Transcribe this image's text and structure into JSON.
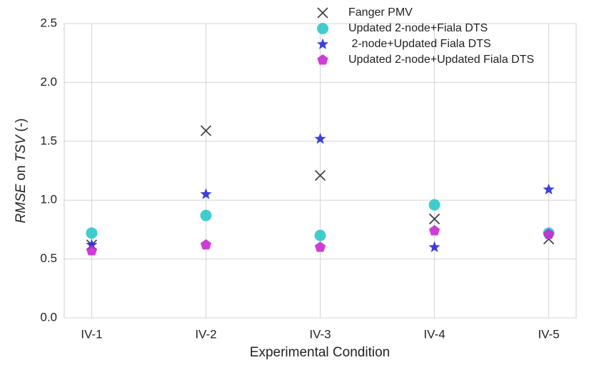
{
  "chart_data": {
    "type": "scatter",
    "x_label": "Experimental Condition",
    "y_label": [
      "RMSE",
      "on",
      "TSV",
      "(-)"
    ],
    "categories": [
      "IV-1",
      "IV-2",
      "IV-3",
      "IV-4",
      "IV-5"
    ],
    "series": [
      {
        "name": "Fanger PMV",
        "color": "#444444",
        "marker": "x",
        "values": [
          0.62,
          1.59,
          1.21,
          0.84,
          0.67
        ]
      },
      {
        "name": "Updated 2-node+Fiala DTS",
        "color": "#1fc4c4",
        "marker": "circle",
        "values": [
          0.72,
          0.87,
          0.7,
          0.96,
          0.72
        ]
      },
      {
        "name": " 2-node+Updated Fiala DTS",
        "color": "#2a2ad8",
        "marker": "star",
        "values": [
          0.62,
          1.05,
          1.52,
          0.6,
          1.09
        ]
      },
      {
        "name": "Updated 2-node+Updated Fiala DTS",
        "color": "#c62ad0",
        "marker": "pentagon",
        "values": [
          0.57,
          0.62,
          0.6,
          0.74,
          0.71
        ]
      }
    ],
    "ylim": [
      0,
      2.5
    ],
    "yticks": [
      {
        "value": 0,
        "label": "0.0"
      },
      0.5,
      {
        "value": 1,
        "label": "1.0"
      },
      1.5,
      {
        "value": 2,
        "label": "2.0"
      },
      2.5
    ],
    "grid": true,
    "legend": "upper right"
  }
}
